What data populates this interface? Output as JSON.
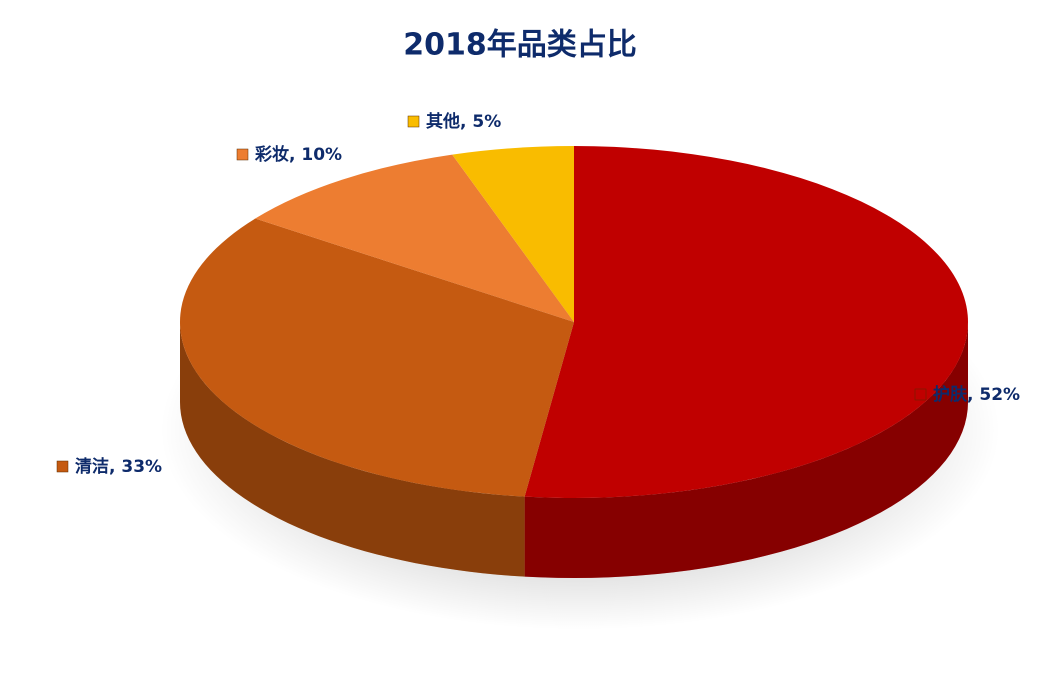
{
  "chart_data": {
    "type": "pie3d",
    "title": "2018年品类占比",
    "categories": [
      "护肤",
      "清洁",
      "彩妆",
      "其他"
    ],
    "values": [
      52,
      33,
      10,
      5
    ],
    "value_labels": [
      "护肤, 52%",
      "清洁, 33%",
      "彩妆, 10%",
      "其他, 5%"
    ],
    "colors": [
      "#C00000",
      "#C55A11",
      "#ED7D31",
      "#F9BC00"
    ]
  }
}
